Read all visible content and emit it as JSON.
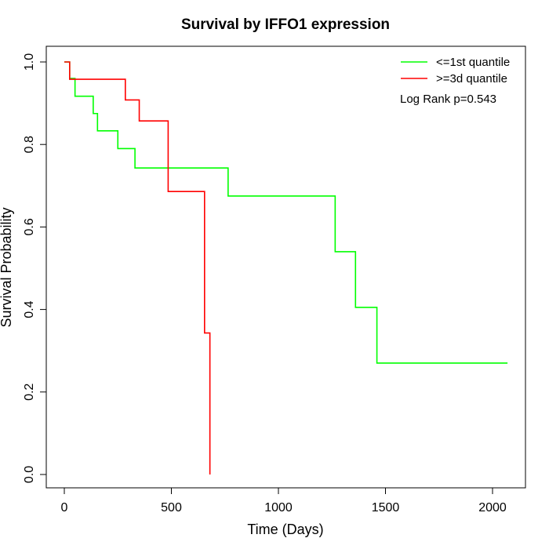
{
  "chart_data": {
    "type": "line",
    "title": "Survival by IFFO1 expression",
    "xlabel": "Time (Days)",
    "ylabel": "Survival Probability",
    "xlim": [
      0,
      2070
    ],
    "ylim": [
      0,
      1.0
    ],
    "x_ticks": [
      0,
      500,
      1000,
      1500,
      2000
    ],
    "y_ticks": [
      0.0,
      0.2,
      0.4,
      0.6,
      0.8,
      1.0
    ],
    "x_tick_labels": [
      "0",
      "500",
      "1000",
      "1500",
      "2000"
    ],
    "y_tick_labels": [
      "0.0",
      "0.2",
      "0.4",
      "0.6",
      "0.8",
      "1.0"
    ],
    "grid": false,
    "legend_position": "top-right",
    "annotation": "Log Rank p=0.543",
    "series": [
      {
        "name": "<=1st quantile",
        "color": "#00ff00",
        "step_points": [
          [
            0,
            1.0
          ],
          [
            25,
            0.96
          ],
          [
            50,
            0.917
          ],
          [
            135,
            0.875
          ],
          [
            155,
            0.833
          ],
          [
            250,
            0.79
          ],
          [
            330,
            0.743
          ],
          [
            765,
            0.675
          ],
          [
            1265,
            0.54
          ],
          [
            1360,
            0.405
          ],
          [
            1460,
            0.27
          ],
          [
            2070,
            0.27
          ]
        ]
      },
      {
        "name": ">=3d quantile",
        "color": "#ff0000",
        "step_points": [
          [
            0,
            1.0
          ],
          [
            25,
            0.958
          ],
          [
            285,
            0.908
          ],
          [
            350,
            0.857
          ],
          [
            485,
            0.686
          ],
          [
            655,
            0.343
          ],
          [
            680,
            0.0
          ]
        ]
      }
    ]
  }
}
